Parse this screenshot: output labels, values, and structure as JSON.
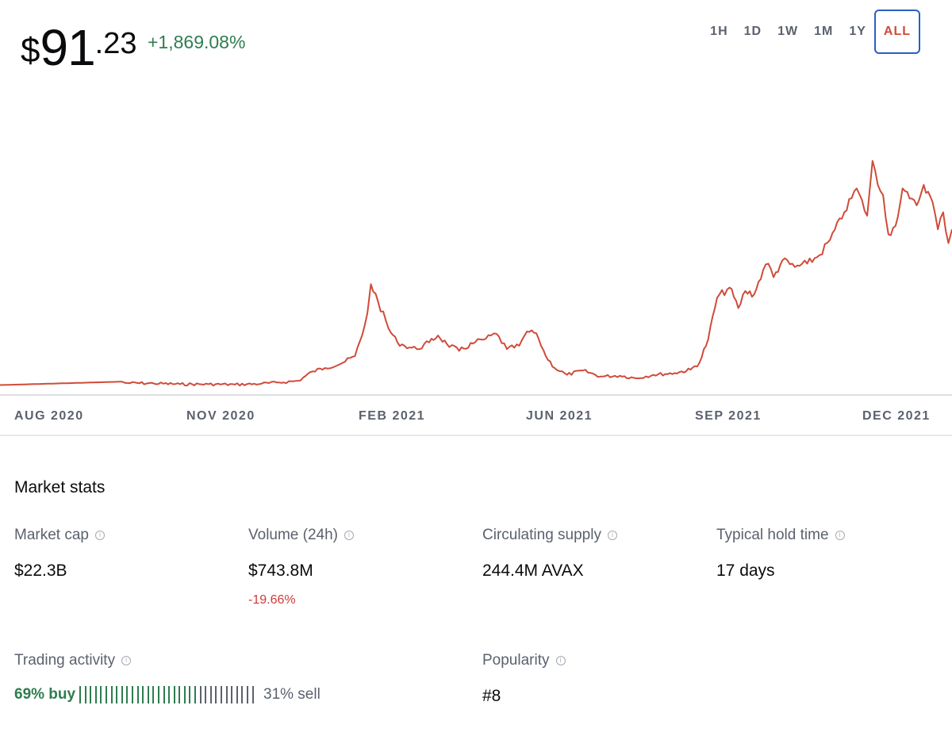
{
  "header": {
    "price_dollar": "$",
    "price_int": "91",
    "price_cents": ".23",
    "change": "+1,869.08%"
  },
  "ranges": [
    {
      "label": "1H",
      "active": false
    },
    {
      "label": "1D",
      "active": false
    },
    {
      "label": "1W",
      "active": false
    },
    {
      "label": "1M",
      "active": false
    },
    {
      "label": "1Y",
      "active": false
    },
    {
      "label": "ALL",
      "active": true
    }
  ],
  "chart_data": {
    "type": "line",
    "title": "",
    "xlabel": "",
    "ylabel": "",
    "x_ticks": [
      "AUG 2020",
      "NOV 2020",
      "FEB 2021",
      "JUN 2021",
      "SEP 2021",
      "DEC 2021"
    ],
    "color": "#cf4b3a",
    "grid": false,
    "x": [
      "2020-07-15",
      "2020-09-22",
      "2020-09-24",
      "2020-10-10",
      "2020-10-25",
      "2020-11-10",
      "2020-11-25",
      "2020-12-10",
      "2020-12-20",
      "2020-12-31",
      "2021-01-08",
      "2021-01-15",
      "2021-01-25",
      "2021-02-01",
      "2021-02-05",
      "2021-02-08",
      "2021-02-10",
      "2021-02-14",
      "2021-02-20",
      "2021-02-25",
      "2021-03-01",
      "2021-03-08",
      "2021-03-15",
      "2021-03-20",
      "2021-03-25",
      "2021-04-01",
      "2021-04-10",
      "2021-04-16",
      "2021-04-22",
      "2021-04-28",
      "2021-05-05",
      "2021-05-08",
      "2021-05-12",
      "2021-05-16",
      "2021-05-20",
      "2021-05-25",
      "2021-06-01",
      "2021-06-10",
      "2021-06-20",
      "2021-07-01",
      "2021-07-10",
      "2021-07-20",
      "2021-08-01",
      "2021-08-10",
      "2021-08-15",
      "2021-08-20",
      "2021-08-25",
      "2021-09-01",
      "2021-09-06",
      "2021-09-10",
      "2021-09-15",
      "2021-09-20",
      "2021-09-23",
      "2021-09-26",
      "2021-10-01",
      "2021-10-08",
      "2021-10-15",
      "2021-10-22",
      "2021-10-28",
      "2021-11-05",
      "2021-11-12",
      "2021-11-18",
      "2021-11-21",
      "2021-11-24",
      "2021-11-27",
      "2021-11-30",
      "2021-12-04",
      "2021-12-08",
      "2021-12-12",
      "2021-12-16",
      "2021-12-20",
      "2021-12-25",
      "2021-12-28",
      "2021-12-31",
      "2022-01-03",
      "2022-01-05"
    ],
    "values": [
      3.0,
      5.0,
      4.2,
      4.0,
      3.5,
      3.5,
      3.3,
      3.8,
      4.5,
      5.5,
      11.0,
      13.0,
      16.0,
      20.0,
      32.0,
      45.0,
      62.0,
      52.0,
      36.0,
      28.0,
      26.0,
      24.0,
      28.0,
      32.0,
      27.0,
      23.0,
      28.0,
      30.0,
      33.0,
      24.0,
      26.0,
      32.0,
      35.0,
      30.0,
      20.0,
      13.0,
      9.0,
      11.5,
      8.0,
      8.5,
      7.0,
      9.0,
      10.0,
      12.0,
      16.0,
      30.0,
      54.0,
      60.0,
      48.0,
      58.0,
      56.0,
      70.0,
      74.0,
      66.0,
      76.0,
      72.0,
      74.0,
      79.0,
      88.0,
      104.0,
      118.0,
      102.0,
      134.0,
      120.0,
      114.0,
      91.0,
      96.0,
      118.0,
      112.0,
      108.0,
      120.0,
      110.0,
      94.0,
      104.0,
      86.0,
      94.0
    ],
    "ylim": [
      0,
      140
    ]
  },
  "market_stats": {
    "title": "Market stats",
    "items": [
      {
        "label": "Market cap",
        "value": "$22.3B",
        "sub": ""
      },
      {
        "label": "Volume (24h)",
        "value": "$743.8M",
        "sub": "-19.66%"
      },
      {
        "label": "Circulating supply",
        "value": "244.4M AVAX",
        "sub": ""
      },
      {
        "label": "Typical hold time",
        "value": "17 days",
        "sub": ""
      }
    ],
    "trading": {
      "label": "Trading activity",
      "buy": "69% buy",
      "sell": "31% sell",
      "buy_fraction": 0.69
    },
    "popularity": {
      "label": "Popularity",
      "value": "#8"
    }
  },
  "colors": {
    "buy": "#2e7d4f",
    "sell": "#5b616e",
    "line": "#cf4b3a",
    "accent": "#2a5ec4"
  }
}
